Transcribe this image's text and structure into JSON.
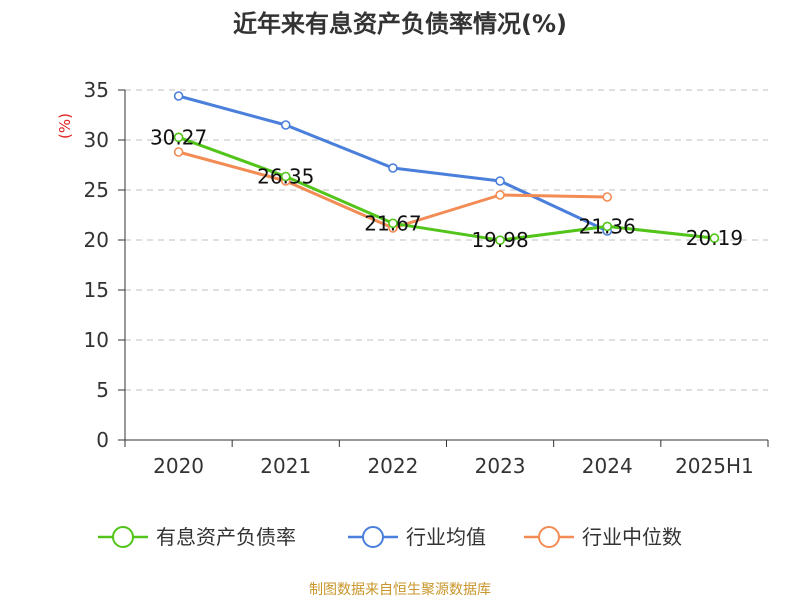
{
  "chart_data": {
    "type": "line",
    "title": "近年来有息资产负债率情况(%)",
    "ylabel": "(%)",
    "xlabel": "",
    "categories": [
      "2020",
      "2021",
      "2022",
      "2023",
      "2024",
      "2025H1"
    ],
    "ylim": [
      0,
      35
    ],
    "yticks": [
      0,
      5,
      10,
      15,
      20,
      25,
      30,
      35
    ],
    "grid": true,
    "legend_position": "bottom",
    "series": [
      {
        "name": "有息资产负债率",
        "color": "#52c41a",
        "values": [
          30.27,
          26.35,
          21.67,
          19.98,
          21.36,
          20.19
        ],
        "labels": [
          "30.27",
          "26.35",
          "21.67",
          "19.98",
          "21.36",
          "20.19"
        ]
      },
      {
        "name": "行业均值",
        "color": "#4a7fdb",
        "values": [
          34.4,
          31.5,
          27.2,
          25.9,
          20.9,
          null
        ]
      },
      {
        "name": "行业中位数",
        "color": "#f28c54",
        "values": [
          28.8,
          25.9,
          21.2,
          24.5,
          24.3,
          null
        ]
      }
    ]
  },
  "footer": {
    "source": "制图数据来自恒生聚源数据库"
  }
}
